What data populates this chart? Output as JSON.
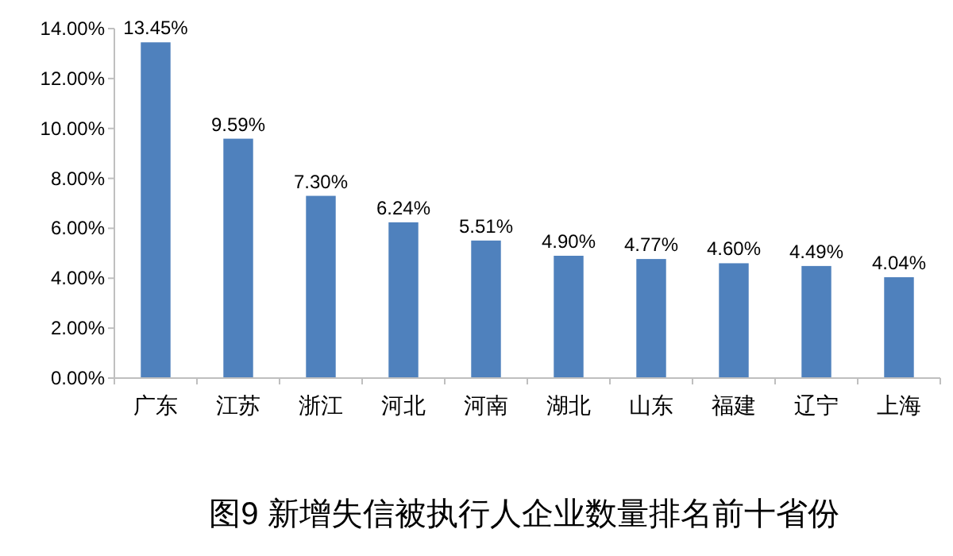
{
  "chart_data": {
    "type": "bar",
    "title": "图9  新增失信被执行人企业数量排名前十省份",
    "categories": [
      "广东",
      "江苏",
      "浙江",
      "河北",
      "河南",
      "湖北",
      "山东",
      "福建",
      "辽宁",
      "上海"
    ],
    "values": [
      13.45,
      9.59,
      7.3,
      6.24,
      5.51,
      4.9,
      4.77,
      4.6,
      4.49,
      4.04
    ],
    "value_labels": [
      "13.45%",
      "9.59%",
      "7.30%",
      "6.24%",
      "5.51%",
      "4.90%",
      "4.77%",
      "4.60%",
      "4.49%",
      "4.04%"
    ],
    "color": "#4f81bd",
    "ylim": [
      0,
      14
    ],
    "yticks": [
      {
        "value": 0,
        "label": "0.00%"
      },
      {
        "value": 2,
        "label": "2.00%"
      },
      {
        "value": 4,
        "label": "4.00%"
      },
      {
        "value": 6,
        "label": "6.00%"
      },
      {
        "value": 8,
        "label": "8.00%"
      },
      {
        "value": 10,
        "label": "10.00%"
      },
      {
        "value": 12,
        "label": "12.00%"
      },
      {
        "value": 14,
        "label": "14.00%"
      }
    ],
    "grid": false
  }
}
